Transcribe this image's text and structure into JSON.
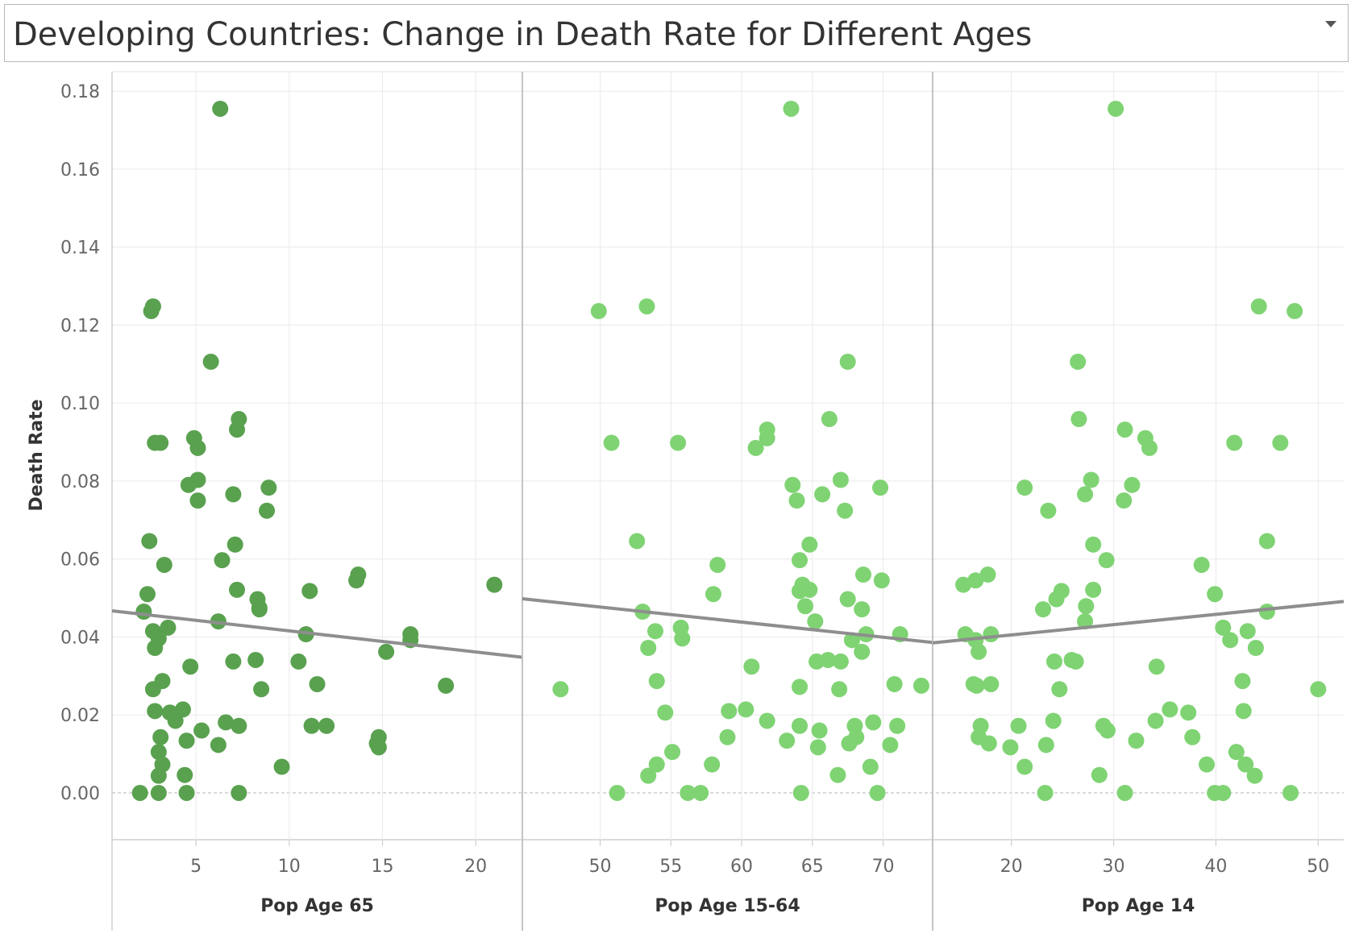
{
  "title": "Developing Countries: Change in Death Rate for Different Ages",
  "colors": {
    "dark_green": "#59a14f",
    "light_green": "#7fd373",
    "trend": "#8e8e8e"
  },
  "icons": {
    "dropdown": "chevron-down-icon"
  },
  "chart_data": {
    "type": "scatter",
    "ylabel": "Death Rate",
    "ylim": [
      -0.012,
      0.185
    ],
    "yticks": [
      "0.00",
      "0.02",
      "0.04",
      "0.06",
      "0.08",
      "0.10",
      "0.12",
      "0.14",
      "0.16",
      "0.18"
    ],
    "grid": true,
    "panels": [
      {
        "xlabel": "Pop Age 65",
        "xticks": [
          "5",
          "10",
          "15",
          "20"
        ],
        "xlim": [
          0.5,
          22.5
        ],
        "color": "#59a14f",
        "trend": [
          [
            0.5,
            0.0467
          ],
          [
            22.5,
            0.0348
          ]
        ],
        "points": [
          [
            6.3,
            0.1755
          ],
          [
            2.7,
            0.1248
          ],
          [
            2.6,
            0.1236
          ],
          [
            5.8,
            0.1106
          ],
          [
            7.3,
            0.0959
          ],
          [
            7.2,
            0.0932
          ],
          [
            4.9,
            0.091
          ],
          [
            5.1,
            0.0885
          ],
          [
            2.8,
            0.0898
          ],
          [
            3.1,
            0.0898
          ],
          [
            5.1,
            0.0803
          ],
          [
            4.6,
            0.079
          ],
          [
            8.9,
            0.0783
          ],
          [
            7.0,
            0.0766
          ],
          [
            5.1,
            0.075
          ],
          [
            8.8,
            0.0724
          ],
          [
            2.5,
            0.0646
          ],
          [
            7.1,
            0.0637
          ],
          [
            6.4,
            0.0597
          ],
          [
            3.3,
            0.0585
          ],
          [
            13.7,
            0.056
          ],
          [
            13.6,
            0.0545
          ],
          [
            21.0,
            0.0534
          ],
          [
            7.2,
            0.0521
          ],
          [
            11.1,
            0.0518
          ],
          [
            2.4,
            0.051
          ],
          [
            8.3,
            0.0497
          ],
          [
            8.4,
            0.0475
          ],
          [
            8.4,
            0.0471
          ],
          [
            2.2,
            0.0465
          ],
          [
            6.2,
            0.044
          ],
          [
            3.5,
            0.0424
          ],
          [
            2.7,
            0.0415
          ],
          [
            10.9,
            0.0407
          ],
          [
            16.5,
            0.0407
          ],
          [
            16.5,
            0.0392
          ],
          [
            3.0,
            0.0396
          ],
          [
            2.8,
            0.0372
          ],
          [
            15.2,
            0.0362
          ],
          [
            8.2,
            0.0341
          ],
          [
            10.5,
            0.0337
          ],
          [
            7.0,
            0.0337
          ],
          [
            4.7,
            0.0324
          ],
          [
            3.2,
            0.0287
          ],
          [
            11.5,
            0.0279
          ],
          [
            18.4,
            0.0275
          ],
          [
            8.5,
            0.0266
          ],
          [
            2.7,
            0.0266
          ],
          [
            4.3,
            0.0214
          ],
          [
            2.8,
            0.021
          ],
          [
            3.6,
            0.0206
          ],
          [
            3.9,
            0.0185
          ],
          [
            6.6,
            0.0181
          ],
          [
            7.3,
            0.0172
          ],
          [
            11.2,
            0.0172
          ],
          [
            12.0,
            0.0172
          ],
          [
            5.3,
            0.016
          ],
          [
            3.1,
            0.0143
          ],
          [
            14.8,
            0.0143
          ],
          [
            4.5,
            0.0134
          ],
          [
            14.7,
            0.0127
          ],
          [
            14.8,
            0.0117
          ],
          [
            6.2,
            0.0123
          ],
          [
            3.0,
            0.0105
          ],
          [
            3.2,
            0.0073
          ],
          [
            9.6,
            0.0067
          ],
          [
            3.0,
            0.0044
          ],
          [
            4.4,
            0.0046
          ],
          [
            2.0,
            0.0
          ],
          [
            3.0,
            0.0
          ],
          [
            4.5,
            0.0
          ],
          [
            7.3,
            0.0
          ]
        ]
      },
      {
        "xlabel": "Pop Age 15-64",
        "xticks": [
          "50",
          "55",
          "60",
          "65",
          "70"
        ],
        "xlim": [
          44.5,
          73.5
        ],
        "color": "#7fd373",
        "trend": [
          [
            44.5,
            0.0498
          ],
          [
            73.5,
            0.0386
          ]
        ],
        "points": [
          [
            63.5,
            0.1755
          ],
          [
            53.3,
            0.1248
          ],
          [
            49.9,
            0.1236
          ],
          [
            67.5,
            0.1106
          ],
          [
            66.2,
            0.0959
          ],
          [
            61.8,
            0.0932
          ],
          [
            61.8,
            0.091
          ],
          [
            61.0,
            0.0885
          ],
          [
            50.8,
            0.0898
          ],
          [
            55.5,
            0.0898
          ],
          [
            67.0,
            0.0803
          ],
          [
            63.6,
            0.079
          ],
          [
            69.8,
            0.0783
          ],
          [
            65.7,
            0.0766
          ],
          [
            63.9,
            0.075
          ],
          [
            67.3,
            0.0724
          ],
          [
            52.6,
            0.0646
          ],
          [
            64.8,
            0.0637
          ],
          [
            64.1,
            0.0597
          ],
          [
            58.3,
            0.0585
          ],
          [
            68.6,
            0.056
          ],
          [
            69.9,
            0.0545
          ],
          [
            64.3,
            0.0534
          ],
          [
            64.8,
            0.0521
          ],
          [
            64.1,
            0.0518
          ],
          [
            58.0,
            0.051
          ],
          [
            67.5,
            0.0497
          ],
          [
            64.5,
            0.0479
          ],
          [
            68.5,
            0.0471
          ],
          [
            53.0,
            0.0465
          ],
          [
            65.2,
            0.044
          ],
          [
            55.7,
            0.0424
          ],
          [
            53.9,
            0.0415
          ],
          [
            68.8,
            0.0407
          ],
          [
            71.2,
            0.0407
          ],
          [
            67.8,
            0.0392
          ],
          [
            55.8,
            0.0396
          ],
          [
            53.4,
            0.0372
          ],
          [
            68.5,
            0.0362
          ],
          [
            66.1,
            0.0341
          ],
          [
            65.3,
            0.0337
          ],
          [
            67.0,
            0.0337
          ],
          [
            60.7,
            0.0324
          ],
          [
            54.0,
            0.0287
          ],
          [
            70.8,
            0.0279
          ],
          [
            72.7,
            0.0275
          ],
          [
            66.9,
            0.0266
          ],
          [
            47.2,
            0.0266
          ],
          [
            64.1,
            0.0272
          ],
          [
            60.3,
            0.0214
          ],
          [
            59.1,
            0.021
          ],
          [
            54.6,
            0.0206
          ],
          [
            61.8,
            0.0185
          ],
          [
            69.3,
            0.0181
          ],
          [
            64.1,
            0.0172
          ],
          [
            68.0,
            0.0172
          ],
          [
            71.0,
            0.0172
          ],
          [
            65.5,
            0.016
          ],
          [
            59.0,
            0.0143
          ],
          [
            68.1,
            0.0143
          ],
          [
            63.2,
            0.0134
          ],
          [
            67.6,
            0.0127
          ],
          [
            70.5,
            0.0123
          ],
          [
            65.4,
            0.0117
          ],
          [
            55.1,
            0.0105
          ],
          [
            54.0,
            0.0073
          ],
          [
            57.9,
            0.0073
          ],
          [
            69.1,
            0.0067
          ],
          [
            53.4,
            0.0044
          ],
          [
            66.8,
            0.0046
          ],
          [
            51.2,
            0.0
          ],
          [
            56.2,
            0.0
          ],
          [
            57.1,
            0.0
          ],
          [
            64.2,
            0.0
          ],
          [
            69.6,
            0.0
          ]
        ]
      },
      {
        "xlabel": "Pop Age 14",
        "xticks": [
          "20",
          "30",
          "40",
          "50"
        ],
        "xlim": [
          12.3,
          52.5
        ],
        "color": "#7fd373",
        "trend": [
          [
            12.3,
            0.0385
          ],
          [
            52.5,
            0.0491
          ]
        ],
        "points": [
          [
            30.2,
            0.1755
          ],
          [
            44.2,
            0.1248
          ],
          [
            47.7,
            0.1236
          ],
          [
            26.5,
            0.1106
          ],
          [
            26.6,
            0.0959
          ],
          [
            31.1,
            0.0932
          ],
          [
            33.1,
            0.091
          ],
          [
            33.5,
            0.0885
          ],
          [
            41.8,
            0.0898
          ],
          [
            46.3,
            0.0898
          ],
          [
            27.8,
            0.0803
          ],
          [
            31.8,
            0.079
          ],
          [
            21.3,
            0.0783
          ],
          [
            27.2,
            0.0766
          ],
          [
            31.0,
            0.075
          ],
          [
            23.6,
            0.0724
          ],
          [
            45.0,
            0.0646
          ],
          [
            28.0,
            0.0637
          ],
          [
            29.3,
            0.0597
          ],
          [
            38.6,
            0.0585
          ],
          [
            17.7,
            0.056
          ],
          [
            16.5,
            0.0545
          ],
          [
            15.3,
            0.0534
          ],
          [
            28.0,
            0.0521
          ],
          [
            24.9,
            0.0518
          ],
          [
            39.9,
            0.051
          ],
          [
            24.4,
            0.0497
          ],
          [
            27.3,
            0.0479
          ],
          [
            23.1,
            0.0471
          ],
          [
            45.0,
            0.0465
          ],
          [
            27.2,
            0.044
          ],
          [
            40.7,
            0.0424
          ],
          [
            43.1,
            0.0415
          ],
          [
            15.5,
            0.0407
          ],
          [
            18.0,
            0.0407
          ],
          [
            16.5,
            0.0392
          ],
          [
            41.4,
            0.0392
          ],
          [
            16.8,
            0.0362
          ],
          [
            43.9,
            0.0372
          ],
          [
            24.2,
            0.0337
          ],
          [
            25.9,
            0.0341
          ],
          [
            26.3,
            0.0337
          ],
          [
            34.2,
            0.0324
          ],
          [
            42.6,
            0.0287
          ],
          [
            18.0,
            0.0279
          ],
          [
            16.6,
            0.0275
          ],
          [
            16.3,
            0.0279
          ],
          [
            24.7,
            0.0266
          ],
          [
            50.0,
            0.0266
          ],
          [
            35.5,
            0.0214
          ],
          [
            37.3,
            0.0206
          ],
          [
            42.7,
            0.021
          ],
          [
            24.1,
            0.0185
          ],
          [
            34.1,
            0.0185
          ],
          [
            29.0,
            0.0172
          ],
          [
            20.7,
            0.0172
          ],
          [
            17.0,
            0.0172
          ],
          [
            29.4,
            0.016
          ],
          [
            16.8,
            0.0143
          ],
          [
            37.7,
            0.0143
          ],
          [
            32.2,
            0.0134
          ],
          [
            17.8,
            0.0127
          ],
          [
            19.9,
            0.0117
          ],
          [
            23.4,
            0.0123
          ],
          [
            42.0,
            0.0105
          ],
          [
            21.3,
            0.0067
          ],
          [
            39.1,
            0.0073
          ],
          [
            42.9,
            0.0073
          ],
          [
            28.6,
            0.0046
          ],
          [
            43.8,
            0.0044
          ],
          [
            23.3,
            0.0
          ],
          [
            31.1,
            0.0
          ],
          [
            39.9,
            0.0
          ],
          [
            40.7,
            0.0
          ],
          [
            47.3,
            0.0
          ]
        ]
      }
    ]
  }
}
